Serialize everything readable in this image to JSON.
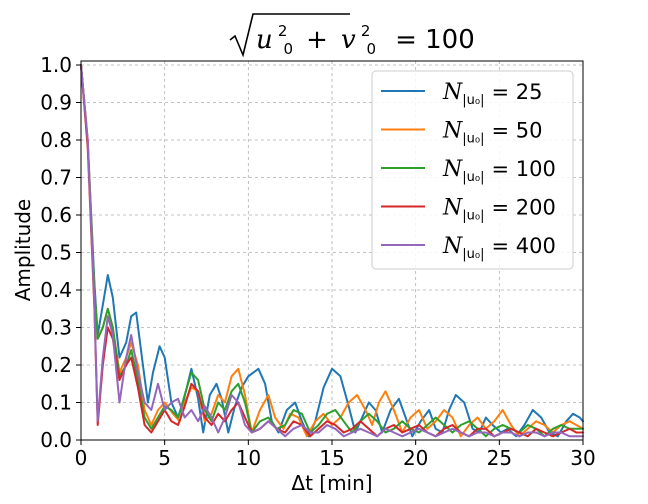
{
  "chart_data": {
    "type": "line",
    "title": {
      "var_u": "u",
      "var_v": "v",
      "sub": "0",
      "sup": "2",
      "plus": "+",
      "equals": "= 100",
      "full": "√(u₀² + v₀²) = 100"
    },
    "xlabel": "Δt [min]",
    "ylabel": "Amplitude",
    "xlim": [
      0,
      30
    ],
    "ylim": [
      0,
      1.0
    ],
    "xticks": [
      0,
      5,
      10,
      15,
      20,
      25,
      30
    ],
    "yticks": [
      0.0,
      0.1,
      0.2,
      0.3,
      0.4,
      0.5,
      0.6,
      0.7,
      0.8,
      0.9,
      1.0
    ],
    "ytick_labels": [
      "0.0",
      "0.1",
      "0.2",
      "0.3",
      "0.4",
      "0.5",
      "0.6",
      "0.7",
      "0.8",
      "0.9",
      "1.0"
    ],
    "xtick_labels": [
      "0",
      "5",
      "10",
      "15",
      "20",
      "25",
      "30"
    ],
    "grid": true,
    "legend_position": "top-right",
    "series": [
      {
        "name": "N|u0| = 25",
        "legend_value": "= 25",
        "color": "#1f77b4",
        "x": [
          0,
          0.4,
          0.8,
          1.0,
          1.3,
          1.6,
          1.9,
          2.3,
          2.7,
          3.0,
          3.3,
          3.7,
          4.0,
          4.3,
          4.7,
          5.0,
          5.4,
          5.8,
          6.1,
          6.6,
          7.0,
          7.3,
          7.7,
          8.1,
          8.4,
          8.8,
          9.2,
          9.6,
          10.0,
          10.6,
          11.0,
          11.4,
          11.8,
          12.3,
          12.8,
          13.2,
          13.6,
          14.0,
          14.5,
          15.0,
          15.5,
          16.0,
          16.4,
          16.8,
          17.2,
          17.6,
          18.0,
          18.5,
          19.0,
          19.4,
          19.8,
          20.3,
          20.8,
          21.2,
          21.6,
          22.0,
          22.4,
          22.9,
          23.4,
          23.8,
          24.2,
          24.6,
          25.1,
          25.5,
          26.0,
          26.5,
          27.0,
          27.5,
          28.0,
          28.5,
          29.0,
          29.4,
          29.8,
          30.0
        ],
        "y": [
          1.0,
          0.8,
          0.42,
          0.28,
          0.36,
          0.44,
          0.38,
          0.22,
          0.26,
          0.33,
          0.34,
          0.2,
          0.1,
          0.18,
          0.25,
          0.22,
          0.1,
          0.06,
          0.1,
          0.19,
          0.11,
          0.02,
          0.12,
          0.15,
          0.11,
          0.02,
          0.09,
          0.14,
          0.17,
          0.19,
          0.15,
          0.05,
          0.02,
          0.08,
          0.1,
          0.05,
          0.01,
          0.05,
          0.14,
          0.19,
          0.17,
          0.09,
          0.02,
          0.06,
          0.1,
          0.08,
          0.02,
          0.08,
          0.11,
          0.06,
          0.01,
          0.05,
          0.08,
          0.03,
          0.02,
          0.08,
          0.12,
          0.1,
          0.03,
          0.02,
          0.06,
          0.04,
          0.02,
          0.03,
          0.01,
          0.04,
          0.08,
          0.06,
          0.02,
          0.01,
          0.05,
          0.07,
          0.06,
          0.05
        ]
      },
      {
        "name": "N|u0| = 50",
        "legend_value": "= 50",
        "color": "#ff7f0e",
        "x": [
          0,
          0.4,
          0.8,
          1.0,
          1.3,
          1.6,
          1.9,
          2.3,
          2.7,
          3.0,
          3.4,
          3.8,
          4.2,
          4.6,
          5.0,
          5.5,
          5.9,
          6.2,
          6.6,
          7.0,
          7.4,
          7.8,
          8.2,
          8.6,
          9.0,
          9.4,
          9.8,
          10.2,
          10.7,
          11.2,
          11.6,
          12.1,
          12.5,
          13.0,
          13.5,
          14.0,
          14.5,
          15.0,
          15.5,
          16.0,
          16.5,
          17.0,
          17.4,
          17.8,
          18.2,
          18.7,
          19.2,
          19.7,
          20.2,
          20.7,
          21.2,
          21.7,
          22.2,
          22.7,
          23.2,
          23.7,
          24.2,
          24.7,
          25.2,
          25.7,
          26.2,
          26.7,
          27.2,
          27.7,
          28.2,
          28.7,
          29.2,
          29.6,
          30.0
        ],
        "y": [
          1.0,
          0.8,
          0.4,
          0.27,
          0.3,
          0.35,
          0.3,
          0.18,
          0.22,
          0.26,
          0.2,
          0.08,
          0.04,
          0.08,
          0.1,
          0.07,
          0.05,
          0.1,
          0.14,
          0.13,
          0.05,
          0.07,
          0.12,
          0.1,
          0.17,
          0.19,
          0.12,
          0.02,
          0.08,
          0.12,
          0.06,
          0.03,
          0.07,
          0.06,
          0.01,
          0.05,
          0.07,
          0.04,
          0.06,
          0.1,
          0.12,
          0.08,
          0.04,
          0.1,
          0.13,
          0.08,
          0.02,
          0.06,
          0.08,
          0.03,
          0.05,
          0.08,
          0.06,
          0.01,
          0.04,
          0.06,
          0.03,
          0.05,
          0.08,
          0.04,
          0.01,
          0.03,
          0.05,
          0.04,
          0.02,
          0.04,
          0.05,
          0.04,
          0.03
        ]
      },
      {
        "name": "N|u0| = 100",
        "legend_value": "= 100",
        "color": "#2ca02c",
        "x": [
          0,
          0.4,
          0.8,
          1.0,
          1.3,
          1.6,
          1.9,
          2.3,
          2.7,
          3.0,
          3.4,
          3.8,
          4.2,
          4.6,
          5.0,
          5.4,
          5.8,
          6.2,
          6.6,
          7.0,
          7.4,
          7.8,
          8.2,
          8.6,
          9.0,
          9.4,
          9.8,
          10.2,
          10.7,
          11.2,
          11.7,
          12.2,
          12.7,
          13.2,
          13.7,
          14.2,
          14.7,
          15.2,
          15.7,
          16.2,
          16.7,
          17.2,
          17.7,
          18.2,
          18.7,
          19.2,
          19.7,
          20.2,
          20.7,
          21.2,
          21.7,
          22.2,
          22.7,
          23.2,
          23.7,
          24.2,
          24.7,
          25.2,
          25.7,
          26.2,
          26.7,
          27.2,
          27.7,
          28.2,
          28.7,
          29.2,
          29.6,
          30.0
        ],
        "y": [
          1.0,
          0.79,
          0.4,
          0.27,
          0.3,
          0.35,
          0.3,
          0.17,
          0.2,
          0.24,
          0.16,
          0.06,
          0.03,
          0.06,
          0.09,
          0.08,
          0.06,
          0.12,
          0.18,
          0.16,
          0.08,
          0.05,
          0.1,
          0.08,
          0.13,
          0.15,
          0.1,
          0.02,
          0.05,
          0.06,
          0.03,
          0.04,
          0.08,
          0.07,
          0.02,
          0.04,
          0.07,
          0.08,
          0.05,
          0.02,
          0.05,
          0.07,
          0.05,
          0.02,
          0.03,
          0.05,
          0.03,
          0.02,
          0.04,
          0.06,
          0.04,
          0.02,
          0.04,
          0.05,
          0.03,
          0.01,
          0.03,
          0.04,
          0.03,
          0.02,
          0.04,
          0.03,
          0.01,
          0.03,
          0.04,
          0.03,
          0.03,
          0.03
        ]
      },
      {
        "name": "N|u0| = 200",
        "legend_value": "= 200",
        "color": "#d62728",
        "x": [
          0,
          0.4,
          0.8,
          1.0,
          1.3,
          1.6,
          1.9,
          2.3,
          2.7,
          3.0,
          3.4,
          3.8,
          4.2,
          4.6,
          5.0,
          5.4,
          5.8,
          6.2,
          6.6,
          7.0,
          7.4,
          7.8,
          8.2,
          8.6,
          9.0,
          9.4,
          9.8,
          10.2,
          10.7,
          11.2,
          11.7,
          12.2,
          12.7,
          13.2,
          13.7,
          14.2,
          14.7,
          15.2,
          15.7,
          16.2,
          16.7,
          17.2,
          17.7,
          18.2,
          18.7,
          19.2,
          19.7,
          20.2,
          20.7,
          21.2,
          21.7,
          22.2,
          22.7,
          23.2,
          23.7,
          24.2,
          24.7,
          25.2,
          25.7,
          26.2,
          26.7,
          27.2,
          27.7,
          28.2,
          28.7,
          29.2,
          29.6,
          30.0
        ],
        "y": [
          1.0,
          0.78,
          0.35,
          0.04,
          0.2,
          0.3,
          0.27,
          0.16,
          0.2,
          0.22,
          0.14,
          0.04,
          0.02,
          0.05,
          0.08,
          0.05,
          0.04,
          0.09,
          0.15,
          0.13,
          0.06,
          0.04,
          0.07,
          0.05,
          0.08,
          0.1,
          0.06,
          0.02,
          0.03,
          0.05,
          0.03,
          0.02,
          0.05,
          0.04,
          0.01,
          0.03,
          0.05,
          0.04,
          0.02,
          0.03,
          0.05,
          0.03,
          0.01,
          0.03,
          0.04,
          0.02,
          0.03,
          0.04,
          0.02,
          0.01,
          0.03,
          0.04,
          0.02,
          0.01,
          0.03,
          0.03,
          0.01,
          0.02,
          0.03,
          0.02,
          0.01,
          0.03,
          0.02,
          0.01,
          0.02,
          0.03,
          0.02,
          0.02
        ]
      },
      {
        "name": "N|u0| = 400",
        "legend_value": "= 400",
        "color": "#9467bd",
        "x": [
          0,
          0.4,
          0.8,
          1.0,
          1.3,
          1.6,
          1.9,
          2.3,
          2.7,
          3.0,
          3.4,
          3.8,
          4.2,
          4.6,
          5.0,
          5.4,
          5.8,
          6.2,
          6.6,
          7.0,
          7.4,
          7.8,
          8.2,
          8.6,
          9.0,
          9.4,
          9.8,
          10.2,
          10.7,
          11.2,
          11.7,
          12.2,
          12.7,
          13.2,
          13.7,
          14.2,
          14.7,
          15.2,
          15.7,
          16.2,
          16.7,
          17.2,
          17.7,
          18.2,
          18.7,
          19.2,
          19.7,
          20.2,
          20.7,
          21.2,
          21.7,
          22.2,
          22.7,
          23.2,
          23.7,
          24.2,
          24.7,
          25.2,
          25.7,
          26.2,
          26.7,
          27.2,
          27.7,
          28.2,
          28.7,
          29.2,
          29.6,
          30.0
        ],
        "y": [
          1.0,
          0.8,
          0.36,
          0.05,
          0.22,
          0.33,
          0.28,
          0.1,
          0.22,
          0.28,
          0.18,
          0.1,
          0.08,
          0.15,
          0.08,
          0.1,
          0.11,
          0.06,
          0.08,
          0.05,
          0.09,
          0.06,
          0.02,
          0.06,
          0.12,
          0.1,
          0.04,
          0.02,
          0.03,
          0.05,
          0.03,
          0.01,
          0.03,
          0.04,
          0.02,
          0.02,
          0.04,
          0.03,
          0.01,
          0.02,
          0.03,
          0.02,
          0.01,
          0.03,
          0.02,
          0.01,
          0.02,
          0.03,
          0.02,
          0.01,
          0.02,
          0.03,
          0.02,
          0.01,
          0.02,
          0.02,
          0.01,
          0.02,
          0.02,
          0.01,
          0.02,
          0.02,
          0.01,
          0.02,
          0.02,
          0.01,
          0.01,
          0.01
        ]
      }
    ]
  }
}
